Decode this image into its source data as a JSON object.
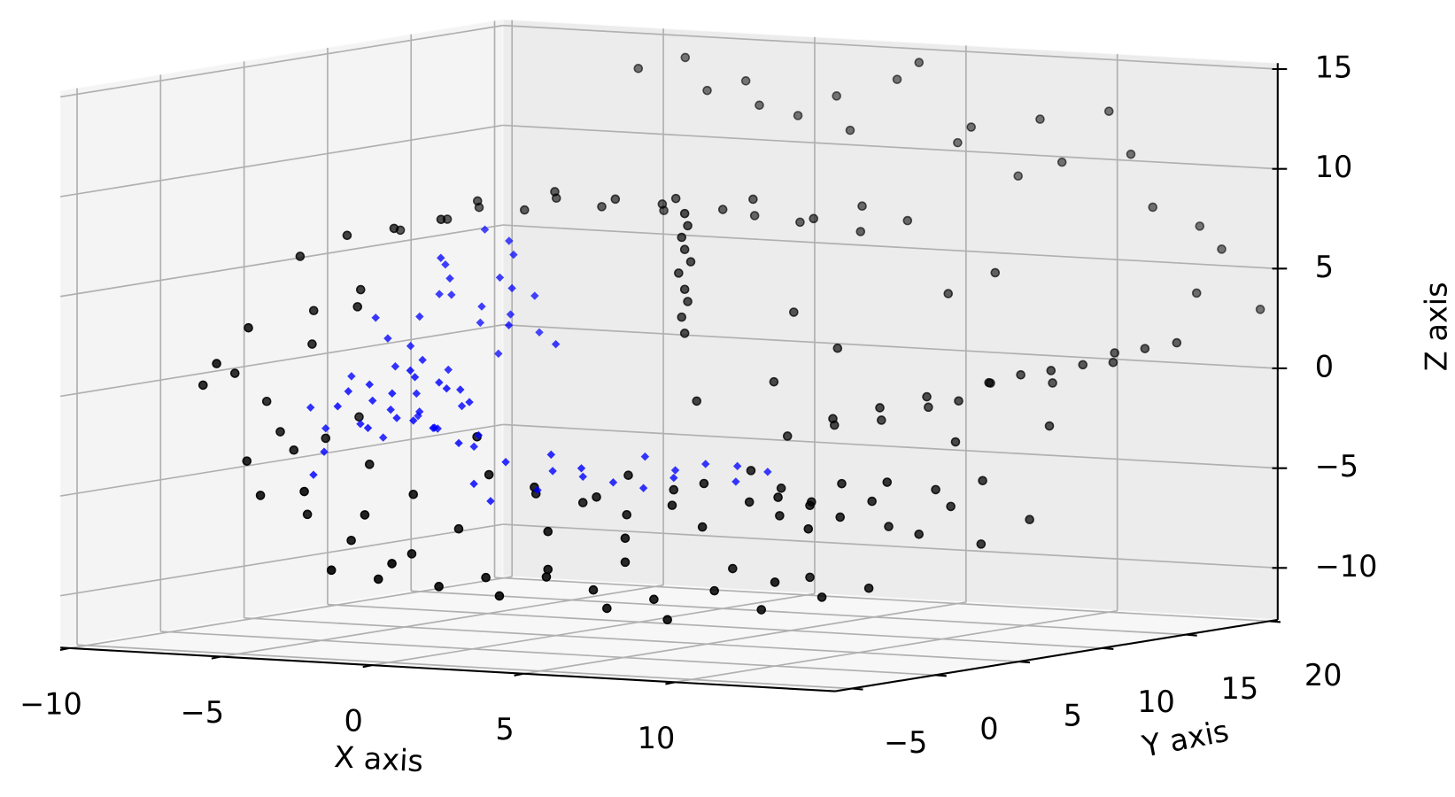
{
  "chart_data": {
    "type": "scatter3d",
    "xlabel": "X axis",
    "ylabel": "Y axis",
    "zlabel": "Z axis",
    "xlim": [
      -10.3,
      15.3
    ],
    "ylim": [
      -6,
      20.5
    ],
    "zlim": [
      -12.6,
      15.3
    ],
    "xticks": [
      {
        "value": -10,
        "label": "−10"
      },
      {
        "value": -5,
        "label": "−5"
      },
      0,
      5,
      10
    ],
    "yticks": [
      {
        "value": -5,
        "label": "−5"
      },
      0,
      5,
      10,
      15,
      20
    ],
    "zticks": [
      {
        "value": -10,
        "label": "−10"
      },
      {
        "value": -5,
        "label": "−5"
      },
      0,
      5,
      10,
      15
    ],
    "grid": true,
    "series": [
      {
        "color": "#000000",
        "marker": "circle",
        "x": [
          -9,
          -8,
          -7.5,
          -7,
          -6,
          -5.5,
          -5,
          -4,
          -3,
          -2.5,
          -2,
          -1,
          0,
          0.5,
          1,
          2,
          3,
          3.5,
          4,
          5,
          -5,
          -4,
          -3,
          -2,
          -1,
          0,
          1,
          2,
          3,
          4,
          5,
          6,
          7,
          8,
          9,
          10,
          11,
          12,
          13,
          14,
          15,
          14,
          6,
          7,
          7.5,
          8,
          8.5,
          9,
          9.5,
          10,
          10.5,
          11,
          11.5,
          12,
          12.5,
          13,
          13.5,
          14,
          14.5,
          15,
          11,
          13,
          -3,
          -2,
          -1,
          0,
          1,
          2,
          3,
          4,
          5,
          6,
          7,
          8,
          9,
          10,
          11,
          12,
          4.5,
          7.5,
          9.5,
          2.5,
          0,
          1,
          1.5,
          2,
          3,
          3.5,
          4,
          5,
          5.5,
          6,
          7,
          7.5,
          8,
          8.5,
          9,
          2.5,
          4.5,
          6.5,
          -10,
          -9.5,
          -9,
          -9,
          -8.5,
          -8,
          -8,
          -7.5,
          -7,
          -7,
          -6.5,
          -6,
          -9,
          -8,
          -7,
          -6,
          1.5,
          1.4,
          1.6,
          1.5,
          1.3,
          1.7,
          1.5,
          1.4,
          1.6,
          1.5,
          9,
          9.5,
          10,
          10,
          10.5,
          11,
          11,
          11.5,
          12,
          12,
          12.5,
          13,
          13.5,
          14,
          -8,
          -7,
          -6,
          -5,
          -4,
          -3,
          -2,
          -1,
          -6.5,
          -4.5,
          -2.5,
          -1.5,
          4,
          6,
          8,
          5,
          9,
          3
        ],
        "y": [
          12,
          13,
          14,
          13,
          14,
          15,
          14,
          15,
          14,
          16,
          15,
          14,
          15,
          16,
          15,
          16,
          15,
          17,
          16,
          17,
          19,
          20,
          19.5,
          20,
          19,
          19.5,
          20,
          19,
          20,
          19.5,
          20,
          19,
          20,
          19.5,
          19,
          20,
          19.5,
          19,
          20,
          19.5,
          20,
          18,
          8,
          9,
          8,
          10,
          9,
          11,
          10,
          11,
          12,
          11,
          12,
          13,
          12,
          13,
          14,
          13,
          14,
          15,
          9,
          11,
          -3,
          -2,
          -3,
          -2,
          -1,
          -2,
          -1,
          0,
          -1,
          0,
          -1,
          0,
          1,
          0,
          1,
          2,
          1,
          2,
          3,
          0,
          1,
          2,
          1,
          3,
          2,
          3,
          2,
          3,
          2,
          3,
          4,
          3,
          4,
          3,
          4,
          0,
          1,
          2,
          2,
          3,
          1,
          4,
          2,
          5,
          3,
          4,
          6,
          2,
          5,
          4,
          6,
          7,
          8,
          9,
          10,
          10,
          10,
          10,
          10,
          10,
          10,
          10,
          10,
          10,
          2,
          3,
          2,
          4,
          3,
          4,
          5,
          4,
          6,
          5,
          6,
          7,
          6,
          8,
          1,
          0,
          1,
          -1,
          0,
          -1,
          0,
          1,
          3,
          2,
          1,
          3,
          12,
          11,
          14,
          9,
          15,
          8
        ],
        "z": [
          6,
          6.5,
          7,
          7.5,
          7,
          7.5,
          8,
          7.2,
          7.8,
          7,
          7.5,
          8,
          7.4,
          7,
          8,
          6.8,
          7.2,
          7.6,
          6.5,
          7,
          13.5,
          14,
          12.5,
          13,
          12,
          11.5,
          12.5,
          11,
          13.5,
          14.5,
          10.5,
          11.5,
          9,
          12,
          10,
          12.5,
          10.5,
          8,
          7,
          6,
          3,
          4,
          -2.5,
          -2,
          -1.5,
          -1.8,
          -1,
          -1.2,
          -0.5,
          -0.8,
          0,
          0.2,
          0.5,
          0,
          0.8,
          1,
          1.5,
          1.2,
          1.8,
          2,
          -2.5,
          -1.8,
          -8.5,
          -9,
          -8,
          -9.2,
          -8.8,
          -9.5,
          -8.6,
          -9.3,
          -10,
          -9.6,
          -10.4,
          -9,
          -10,
          -8.4,
          -9.2,
          -8.8,
          -8,
          -8.2,
          -8.6,
          -8.4,
          -4,
          -5,
          -4.5,
          -5.5,
          -5,
          -4,
          -5.8,
          -4.6,
          -5.2,
          -4.2,
          -3.6,
          -5,
          -4.4,
          -5.6,
          -5,
          -6.5,
          -6.8,
          -6.2,
          -0.5,
          0,
          0.8,
          -1.5,
          2.5,
          3,
          -2.8,
          1.5,
          4,
          -3.5,
          -2.2,
          3.5,
          5.5,
          6.5,
          6.8,
          7.2,
          2,
          2.8,
          3.6,
          4.2,
          5,
          5.6,
          6.2,
          6.8,
          7.4,
          8,
          -4.5,
          -5,
          -6,
          -4,
          -5.5,
          -4.8,
          -6.2,
          -3.8,
          -4.4,
          -6.5,
          -5.2,
          -4,
          -7,
          -6,
          -4,
          -5.5,
          -6.5,
          -5,
          -7.5,
          -6,
          -8,
          -6.8,
          -3,
          -4,
          -5.2,
          -2.5,
          3,
          1.5,
          4,
          0,
          5,
          -1
        ]
      },
      {
        "color": "#0000ff",
        "marker": "diamond",
        "x": [
          -5,
          -4.5,
          -4,
          -3.5,
          -3,
          -2.5,
          -2,
          -1.5,
          -1,
          -4.8,
          -4.2,
          -3.8,
          -3.2,
          -2.8,
          -2.2,
          -1.8,
          -1.2,
          -4.6,
          -3.6,
          -2.6,
          -1.6,
          -4.4,
          -3.4,
          -2.4,
          -1.4,
          -5.2,
          -3,
          -2,
          -4,
          -3.3,
          -5,
          -4.5,
          -4,
          -3.5,
          -3,
          -2.5,
          -2,
          -4.8,
          -4.2,
          -3.6,
          -3.2,
          -2.6,
          -2.2,
          -4.4,
          -3.8,
          -3,
          -2.4,
          -5.4,
          -1.8,
          -4,
          0,
          1,
          1.5,
          2,
          2.5,
          3,
          3.5,
          4,
          4.5,
          5,
          5.5,
          6,
          6.5,
          7,
          0.5,
          -0.5,
          -6,
          -6.5,
          -5.8,
          -6.2,
          -1,
          0,
          -0.5,
          -7
        ],
        "y": [
          1,
          2,
          1,
          3,
          2,
          1,
          3,
          2,
          1,
          2,
          3,
          2,
          1,
          3,
          2,
          1,
          2,
          3,
          2,
          1,
          3,
          2,
          3,
          2,
          1,
          2,
          4,
          4,
          4,
          3,
          4,
          5,
          6,
          5,
          6,
          7,
          6,
          5,
          6,
          7,
          8,
          7,
          8,
          6,
          5,
          7,
          6,
          4,
          7,
          8,
          2,
          3,
          2,
          3,
          2,
          3,
          4,
          3,
          4,
          3,
          4,
          5,
          4,
          5,
          3,
          1,
          2,
          3,
          1,
          4,
          4,
          5,
          2,
          3
        ],
        "z": [
          -1,
          0,
          -2,
          -0.5,
          0.5,
          -1.5,
          -1,
          0,
          -2.5,
          -2,
          0.8,
          -1.2,
          -0.2,
          -2.2,
          0.3,
          -1.8,
          -0.6,
          -2.8,
          -1.6,
          1,
          -3,
          -0.8,
          -1.4,
          -2,
          0.2,
          -0.4,
          0.6,
          -2.6,
          -1.8,
          1.2,
          2,
          3,
          4,
          5,
          3.5,
          6,
          4.5,
          1.5,
          5.5,
          2.5,
          6.5,
          3,
          2,
          4,
          6,
          1,
          5,
          3,
          4,
          7,
          -3.5,
          -4,
          -3,
          -4.2,
          -3.6,
          -4.4,
          -3.2,
          -4.6,
          -3.8,
          -4,
          -3.4,
          -3.6,
          -4.2,
          -3.8,
          -5,
          -4.5,
          -3.5,
          -2.5,
          -4.5,
          0,
          3,
          2,
          -5.5,
          -1.5
        ]
      }
    ]
  }
}
